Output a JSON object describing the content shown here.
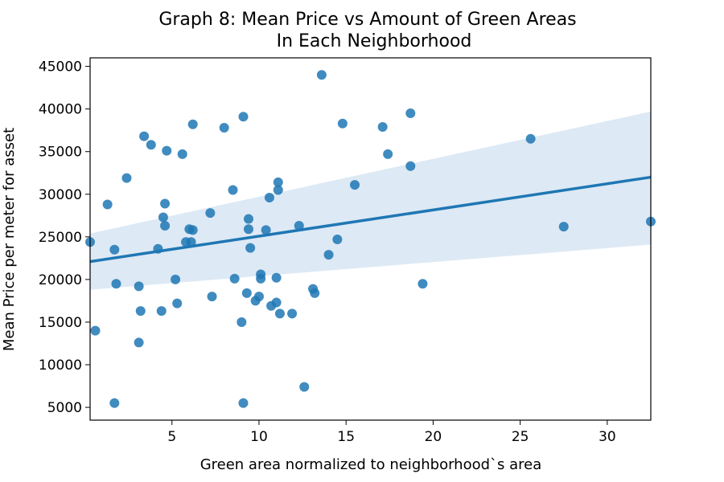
{
  "chart_data": {
    "type": "scatter",
    "title_lines": [
      "Graph 8: Mean Price vs Amount of Green Areas",
      "In Each Neighborhood"
    ],
    "xlabel": "Green area normalized to neighborhood`s area",
    "ylabel": "Mean Price per meter for asset",
    "xlim": [
      0.3,
      32.5
    ],
    "ylim": [
      3500,
      46000
    ],
    "xticks": [
      5,
      10,
      15,
      20,
      25,
      30
    ],
    "yticks": [
      5000,
      10000,
      15000,
      20000,
      25000,
      30000,
      35000,
      40000,
      45000
    ],
    "grid": false,
    "colors": {
      "points": "#1f77b4",
      "line": "#1f77b4",
      "band": "#c6dbef"
    },
    "regression": {
      "x": [
        0.3,
        32.5
      ],
      "y": [
        22100,
        32000
      ],
      "ci_upper": [
        25400,
        39700
      ],
      "ci_lower": [
        18800,
        24100
      ]
    },
    "points": [
      [
        0.3,
        24400
      ],
      [
        0.6,
        14000
      ],
      [
        1.3,
        28800
      ],
      [
        1.7,
        23500
      ],
      [
        1.8,
        19500
      ],
      [
        1.7,
        5500
      ],
      [
        2.4,
        31900
      ],
      [
        3.1,
        19200
      ],
      [
        3.2,
        16300
      ],
      [
        3.1,
        12600
      ],
      [
        3.4,
        36800
      ],
      [
        3.8,
        35800
      ],
      [
        4.2,
        23600
      ],
      [
        4.4,
        16300
      ],
      [
        4.5,
        27300
      ],
      [
        4.6,
        28900
      ],
      [
        4.6,
        26300
      ],
      [
        4.7,
        35100
      ],
      [
        5.2,
        20000
      ],
      [
        5.3,
        17200
      ],
      [
        5.6,
        34700
      ],
      [
        5.8,
        24400
      ],
      [
        6.0,
        25900
      ],
      [
        6.1,
        24400
      ],
      [
        6.2,
        25800
      ],
      [
        6.2,
        38200
      ],
      [
        7.2,
        27800
      ],
      [
        7.3,
        18000
      ],
      [
        8.0,
        37800
      ],
      [
        8.5,
        30500
      ],
      [
        8.6,
        20100
      ],
      [
        9.0,
        15000
      ],
      [
        9.1,
        39100
      ],
      [
        9.1,
        5500
      ],
      [
        9.3,
        18400
      ],
      [
        9.4,
        27100
      ],
      [
        9.4,
        25900
      ],
      [
        9.5,
        23700
      ],
      [
        9.8,
        17500
      ],
      [
        10.0,
        18000
      ],
      [
        10.1,
        20600
      ],
      [
        10.1,
        20100
      ],
      [
        10.4,
        25800
      ],
      [
        10.6,
        29600
      ],
      [
        10.7,
        16900
      ],
      [
        11.0,
        20200
      ],
      [
        11.0,
        17300
      ],
      [
        11.1,
        30500
      ],
      [
        11.1,
        31400
      ],
      [
        11.2,
        16000
      ],
      [
        11.9,
        16000
      ],
      [
        12.3,
        26300
      ],
      [
        12.6,
        7400
      ],
      [
        13.1,
        18900
      ],
      [
        13.2,
        18400
      ],
      [
        13.6,
        44000
      ],
      [
        14.0,
        22900
      ],
      [
        14.5,
        24700
      ],
      [
        14.8,
        38300
      ],
      [
        15.5,
        31100
      ],
      [
        17.1,
        37900
      ],
      [
        17.4,
        34700
      ],
      [
        18.7,
        39500
      ],
      [
        18.7,
        33300
      ],
      [
        19.4,
        19500
      ],
      [
        25.6,
        36500
      ],
      [
        27.5,
        26200
      ],
      [
        32.5,
        26800
      ]
    ]
  }
}
